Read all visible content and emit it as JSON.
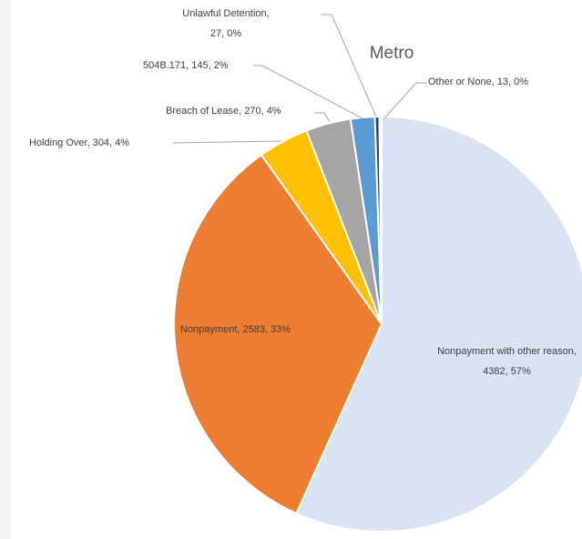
{
  "chart_data": {
    "type": "pie",
    "title": "Metro",
    "value_labels": [
      "Nonpayment with other reason, 4382, 57%",
      "Nonpayment, 2583, 33%",
      "Holding Over, 304, 4%",
      "Breach of Lease, 270, 4%",
      "504B.171, 145, 2%",
      "Unlawful Detention, 27, 0%",
      "Other or None, 13, 0%"
    ],
    "values": [
      4382,
      2583,
      304,
      270,
      145,
      27,
      13
    ],
    "colors": [
      "#dae3f3",
      "#ed7d31",
      "#ffc000",
      "#a5a5a5",
      "#5b9bd5",
      "#264478",
      "#a9d18e"
    ]
  }
}
